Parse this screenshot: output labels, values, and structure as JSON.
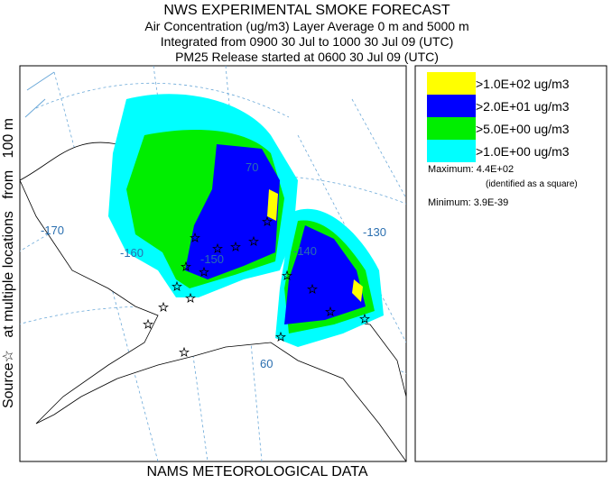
{
  "header": {
    "title": "NWS EXPERIMENTAL SMOKE FORECAST",
    "lines": [
      "Air Concentration (ug/m3) Layer Average    0 m and  5000 m",
      "Integrated from 0900 30 Jul to 1000 30 Jul 09 (UTC)",
      "PM25 Release started at 0600 30 Jul 09 (UTC)"
    ]
  },
  "side_label": "Source☆   at multiple locations   from   100 m",
  "footer": "NAMS METEOROLOGICAL DATA",
  "legend": {
    "items": [
      {
        "label": ">1.0E+02 ug/m3",
        "color": "#ffff00"
      },
      {
        "label": ">2.0E+01 ug/m3",
        "color": "#0000ff"
      },
      {
        "label": ">5.0E+00 ug/m3",
        "color": "#00ee00"
      },
      {
        "label": ">1.0E+00 ug/m3",
        "color": "#00ffff"
      }
    ]
  },
  "stats": {
    "maximum": "Maximum: 4.4E+02",
    "maximum_note": "(identified as a square)",
    "minimum": "Minimum: 3.9E-39"
  },
  "map": {
    "labels": [
      "-170",
      "-160",
      "-150",
      "-140",
      "-130",
      "70",
      "60"
    ]
  }
}
